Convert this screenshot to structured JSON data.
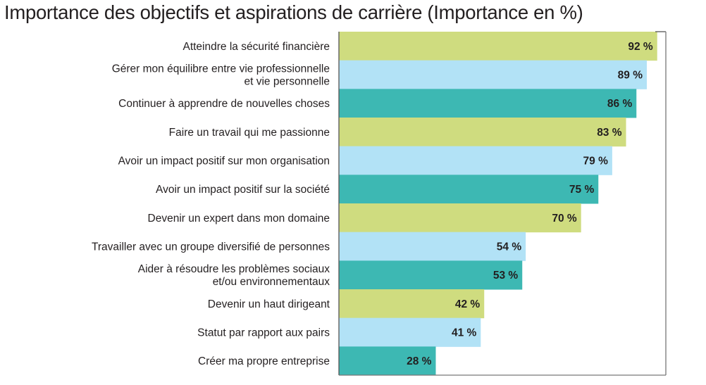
{
  "chart_data": {
    "type": "bar",
    "orientation": "horizontal",
    "title": "Importance des objectifs et aspirations de carrière (Importance en %)",
    "xlabel": "",
    "ylabel": "",
    "xlim": [
      0,
      94.5
    ],
    "grid": false,
    "legend": "none",
    "value_suffix": " %",
    "categories": [
      [
        "Atteindre la sécurité financière"
      ],
      [
        "Gérer mon équilibre entre vie professionnelle",
        "et vie personnelle"
      ],
      [
        "Continuer à apprendre de nouvelles choses"
      ],
      [
        "Faire un travail qui me passionne"
      ],
      [
        "Avoir un impact positif sur mon organisation"
      ],
      [
        "Avoir un impact positif sur la société"
      ],
      [
        "Devenir un expert dans mon domaine"
      ],
      [
        "Travailler avec un groupe diversifié de personnes"
      ],
      [
        "Aider à résoudre les problèmes sociaux",
        "et/ou environnementaux"
      ],
      [
        "Devenir un haut dirigeant"
      ],
      [
        "Statut par rapport aux pairs"
      ],
      [
        "Créer ma propre entreprise"
      ]
    ],
    "values": [
      92,
      89,
      86,
      83,
      79,
      75,
      70,
      54,
      53,
      42,
      41,
      28
    ],
    "colors": [
      "#cfdc7f",
      "#b2e2f6",
      "#3db8b3"
    ]
  }
}
